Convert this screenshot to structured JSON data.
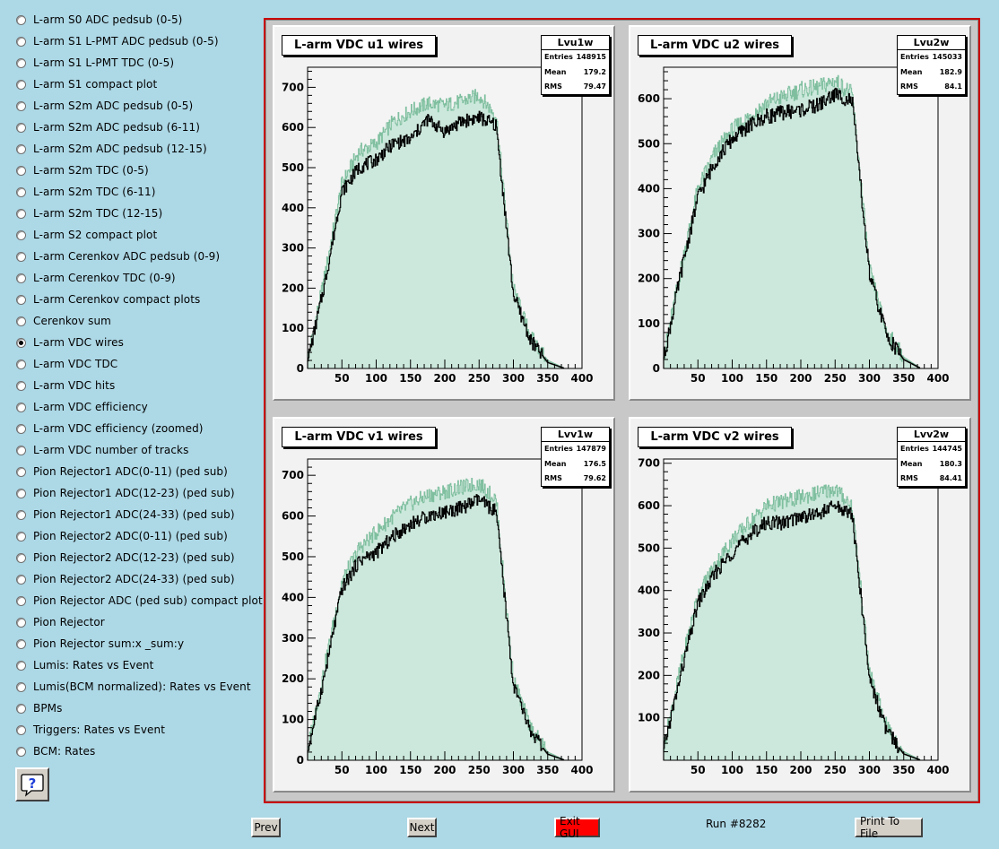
{
  "menu": {
    "items": [
      {
        "label": "L-arm S0 ADC pedsub (0-5)",
        "checked": false
      },
      {
        "label": "L-arm S1 L-PMT ADC pedsub (0-5)",
        "checked": false
      },
      {
        "label": "L-arm S1 L-PMT TDC (0-5)",
        "checked": false
      },
      {
        "label": "L-arm S1 compact plot",
        "checked": false
      },
      {
        "label": "L-arm S2m ADC pedsub (0-5)",
        "checked": false
      },
      {
        "label": "L-arm S2m ADC pedsub (6-11)",
        "checked": false
      },
      {
        "label": "L-arm S2m ADC pedsub (12-15)",
        "checked": false
      },
      {
        "label": "L-arm S2m TDC (0-5)",
        "checked": false
      },
      {
        "label": "L-arm S2m TDC (6-11)",
        "checked": false
      },
      {
        "label": "L-arm S2m TDC (12-15)",
        "checked": false
      },
      {
        "label": "L-arm S2 compact plot",
        "checked": false
      },
      {
        "label": "L-arm Cerenkov ADC pedsub (0-9)",
        "checked": false
      },
      {
        "label": "L-arm Cerenkov TDC (0-9)",
        "checked": false
      },
      {
        "label": "L-arm Cerenkov compact plots",
        "checked": false
      },
      {
        "label": "Cerenkov sum",
        "checked": false
      },
      {
        "label": "L-arm VDC wires",
        "checked": true
      },
      {
        "label": "L-arm VDC TDC",
        "checked": false
      },
      {
        "label": "L-arm VDC hits",
        "checked": false
      },
      {
        "label": "L-arm VDC efficiency",
        "checked": false
      },
      {
        "label": "L-arm VDC efficiency (zoomed)",
        "checked": false
      },
      {
        "label": "L-arm VDC number of tracks",
        "checked": false
      },
      {
        "label": "Pion Rejector1 ADC(0-11) (ped sub)",
        "checked": false
      },
      {
        "label": "Pion Rejector1 ADC(12-23) (ped sub)",
        "checked": false
      },
      {
        "label": "Pion Rejector1 ADC(24-33) (ped sub)",
        "checked": false
      },
      {
        "label": "Pion Rejector2 ADC(0-11) (ped sub)",
        "checked": false
      },
      {
        "label": "Pion Rejector2 ADC(12-23) (ped sub)",
        "checked": false
      },
      {
        "label": "Pion Rejector2 ADC(24-33) (ped sub)",
        "checked": false
      },
      {
        "label": "Pion Rejector ADC (ped sub) compact plot",
        "checked": false
      },
      {
        "label": "Pion Rejector",
        "checked": false
      },
      {
        "label": "Pion Rejector sum:x _sum:y",
        "checked": false
      },
      {
        "label": "Lumis: Rates vs Event",
        "checked": false
      },
      {
        "label": "Lumis(BCM normalized): Rates vs Event",
        "checked": false
      },
      {
        "label": "BPMs",
        "checked": false
      },
      {
        "label": "Triggers: Rates vs Event",
        "checked": false
      },
      {
        "label": "BCM: Rates",
        "checked": false
      }
    ]
  },
  "help_icon": "question-mark-icon",
  "buttons": {
    "prev": "Prev",
    "next": "Next",
    "exit": "Exit GUI",
    "print": "Print To File"
  },
  "run_label": "Run #8282",
  "colors": {
    "background": "#add8e6",
    "frame_border": "#c80000",
    "fill": "#cce8dc",
    "overlay_line": "#7fbf9f",
    "exit_button": "#ff0000"
  },
  "chart_data": [
    {
      "type": "histogram",
      "title": "L-arm VDC u1 wires",
      "stats": {
        "name": "Lvu1w",
        "entries": "148915",
        "mean": "179.2",
        "rms": "79.47"
      },
      "xlim": [
        0,
        400
      ],
      "ylim": [
        0,
        750
      ],
      "xticks": [
        50,
        100,
        150,
        200,
        250,
        300,
        350,
        400
      ],
      "yticks": [
        0,
        100,
        200,
        300,
        400,
        500,
        600,
        700
      ],
      "series": [
        {
          "style": "filled-green",
          "x": [
            0,
            25,
            50,
            75,
            100,
            125,
            150,
            175,
            200,
            225,
            250,
            275,
            300,
            325,
            350,
            375
          ],
          "values": [
            20,
            230,
            460,
            540,
            560,
            615,
            640,
            660,
            655,
            665,
            680,
            630,
            200,
            80,
            20,
            0
          ]
        },
        {
          "style": "black-line",
          "x": [
            0,
            25,
            50,
            75,
            100,
            125,
            150,
            175,
            200,
            225,
            250,
            275,
            300,
            325,
            350,
            375
          ],
          "values": [
            15,
            210,
            440,
            500,
            520,
            560,
            570,
            620,
            590,
            615,
            625,
            605,
            185,
            70,
            15,
            0
          ]
        }
      ]
    },
    {
      "type": "histogram",
      "title": "L-arm VDC u2 wires",
      "stats": {
        "name": "Lvu2w",
        "entries": "145033",
        "mean": "182.9",
        "rms": "84.1"
      },
      "xlim": [
        0,
        400
      ],
      "ylim": [
        0,
        670
      ],
      "xticks": [
        50,
        100,
        150,
        200,
        250,
        300,
        350,
        400
      ],
      "yticks": [
        0,
        100,
        200,
        300,
        400,
        500,
        600
      ],
      "series": [
        {
          "style": "filled-green",
          "x": [
            0,
            25,
            50,
            75,
            100,
            125,
            150,
            175,
            200,
            225,
            250,
            275,
            300,
            325,
            350,
            375
          ],
          "values": [
            25,
            220,
            400,
            480,
            530,
            560,
            590,
            605,
            620,
            625,
            640,
            610,
            220,
            80,
            25,
            0
          ]
        },
        {
          "style": "black-line",
          "x": [
            0,
            25,
            50,
            75,
            100,
            125,
            150,
            175,
            200,
            225,
            250,
            275,
            300,
            325,
            350,
            375
          ],
          "values": [
            20,
            210,
            380,
            460,
            510,
            540,
            560,
            570,
            575,
            585,
            610,
            595,
            210,
            75,
            20,
            0
          ]
        }
      ]
    },
    {
      "type": "histogram",
      "title": "L-arm VDC v1 wires",
      "stats": {
        "name": "Lvv1w",
        "entries": "147879",
        "mean": "176.5",
        "rms": "79.62"
      },
      "xlim": [
        0,
        400
      ],
      "ylim": [
        0,
        740
      ],
      "xticks": [
        50,
        100,
        150,
        200,
        250,
        300,
        350,
        400
      ],
      "yticks": [
        0,
        100,
        200,
        300,
        400,
        500,
        600,
        700
      ],
      "series": [
        {
          "style": "filled-green",
          "x": [
            0,
            25,
            50,
            75,
            100,
            125,
            150,
            175,
            200,
            225,
            250,
            275,
            300,
            325,
            350,
            375
          ],
          "values": [
            25,
            230,
            440,
            520,
            560,
            600,
            630,
            650,
            660,
            670,
            680,
            640,
            200,
            80,
            20,
            0
          ]
        },
        {
          "style": "black-line",
          "x": [
            0,
            25,
            50,
            75,
            100,
            125,
            150,
            175,
            200,
            225,
            250,
            275,
            300,
            325,
            350,
            375
          ],
          "values": [
            20,
            210,
            420,
            490,
            510,
            550,
            580,
            600,
            610,
            620,
            640,
            610,
            185,
            70,
            15,
            0
          ]
        }
      ]
    },
    {
      "type": "histogram",
      "title": "L-arm VDC v2 wires",
      "stats": {
        "name": "Lvv2w",
        "entries": "144745",
        "mean": "180.3",
        "rms": "84.41"
      },
      "xlim": [
        0,
        400
      ],
      "ylim": [
        0,
        710
      ],
      "xticks": [
        50,
        100,
        150,
        200,
        250,
        300,
        350,
        400
      ],
      "yticks": [
        100,
        200,
        300,
        400,
        500,
        600,
        700
      ],
      "series": [
        {
          "style": "filled-green",
          "x": [
            0,
            25,
            50,
            75,
            100,
            125,
            150,
            175,
            200,
            225,
            250,
            275,
            300,
            325,
            350,
            375
          ],
          "values": [
            30,
            220,
            390,
            460,
            520,
            560,
            600,
            610,
            620,
            630,
            640,
            600,
            210,
            80,
            20,
            0
          ]
        },
        {
          "style": "black-line",
          "x": [
            0,
            25,
            50,
            75,
            100,
            125,
            150,
            175,
            200,
            225,
            250,
            275,
            300,
            325,
            350,
            375
          ],
          "values": [
            25,
            200,
            370,
            440,
            490,
            530,
            560,
            560,
            575,
            580,
            600,
            580,
            195,
            70,
            15,
            0
          ]
        }
      ]
    }
  ]
}
